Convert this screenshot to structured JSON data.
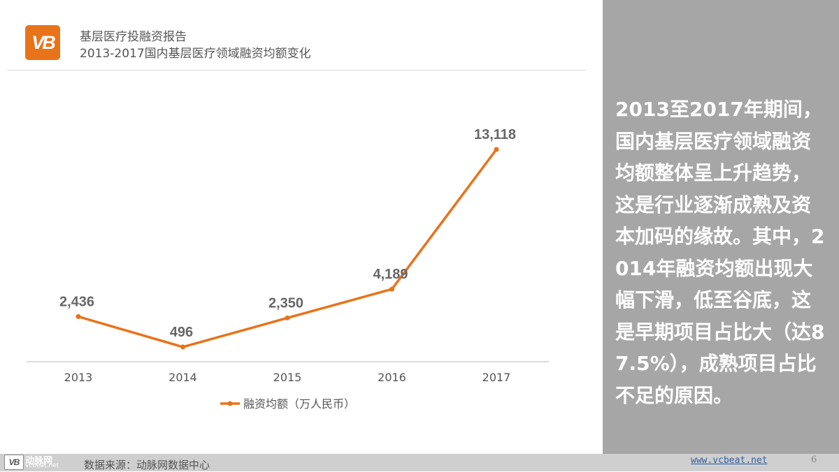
{
  "header": {
    "logo_text": "VB",
    "title": "基层医疗投融资报告",
    "subtitle": "2013-2017国内基层医疗领域融资均额变化"
  },
  "chart_data": {
    "type": "line",
    "x": [
      "2013",
      "2014",
      "2015",
      "2016",
      "2017"
    ],
    "series": [
      {
        "name": "融资均额（万人民币）",
        "values": [
          2436,
          496,
          2350,
          4189,
          13118
        ],
        "labels": [
          "2,436",
          "496",
          "2,350",
          "4,189",
          "13,118"
        ],
        "color": "#e8731a"
      }
    ],
    "ylim": [
      0,
      13118
    ],
    "grid": false,
    "legend_position": "bottom"
  },
  "panel": {
    "text": "2013至2017年期间，国内基层医疗领域融资均额整体呈上升趋势，这是行业逐渐成熟及资本加码的缘故。其中，2014年融资均额出现大幅下滑，低至谷底，这是早期项目占比大（达87.5%），成熟项目占比不足的原因。"
  },
  "footer": {
    "logo_text": "VB",
    "brand": "动脉网",
    "brand_url": "vcbeat.net",
    "source": "数据来源：动脉网数据中心",
    "url": "www.vcbeat.net",
    "page": "6"
  }
}
